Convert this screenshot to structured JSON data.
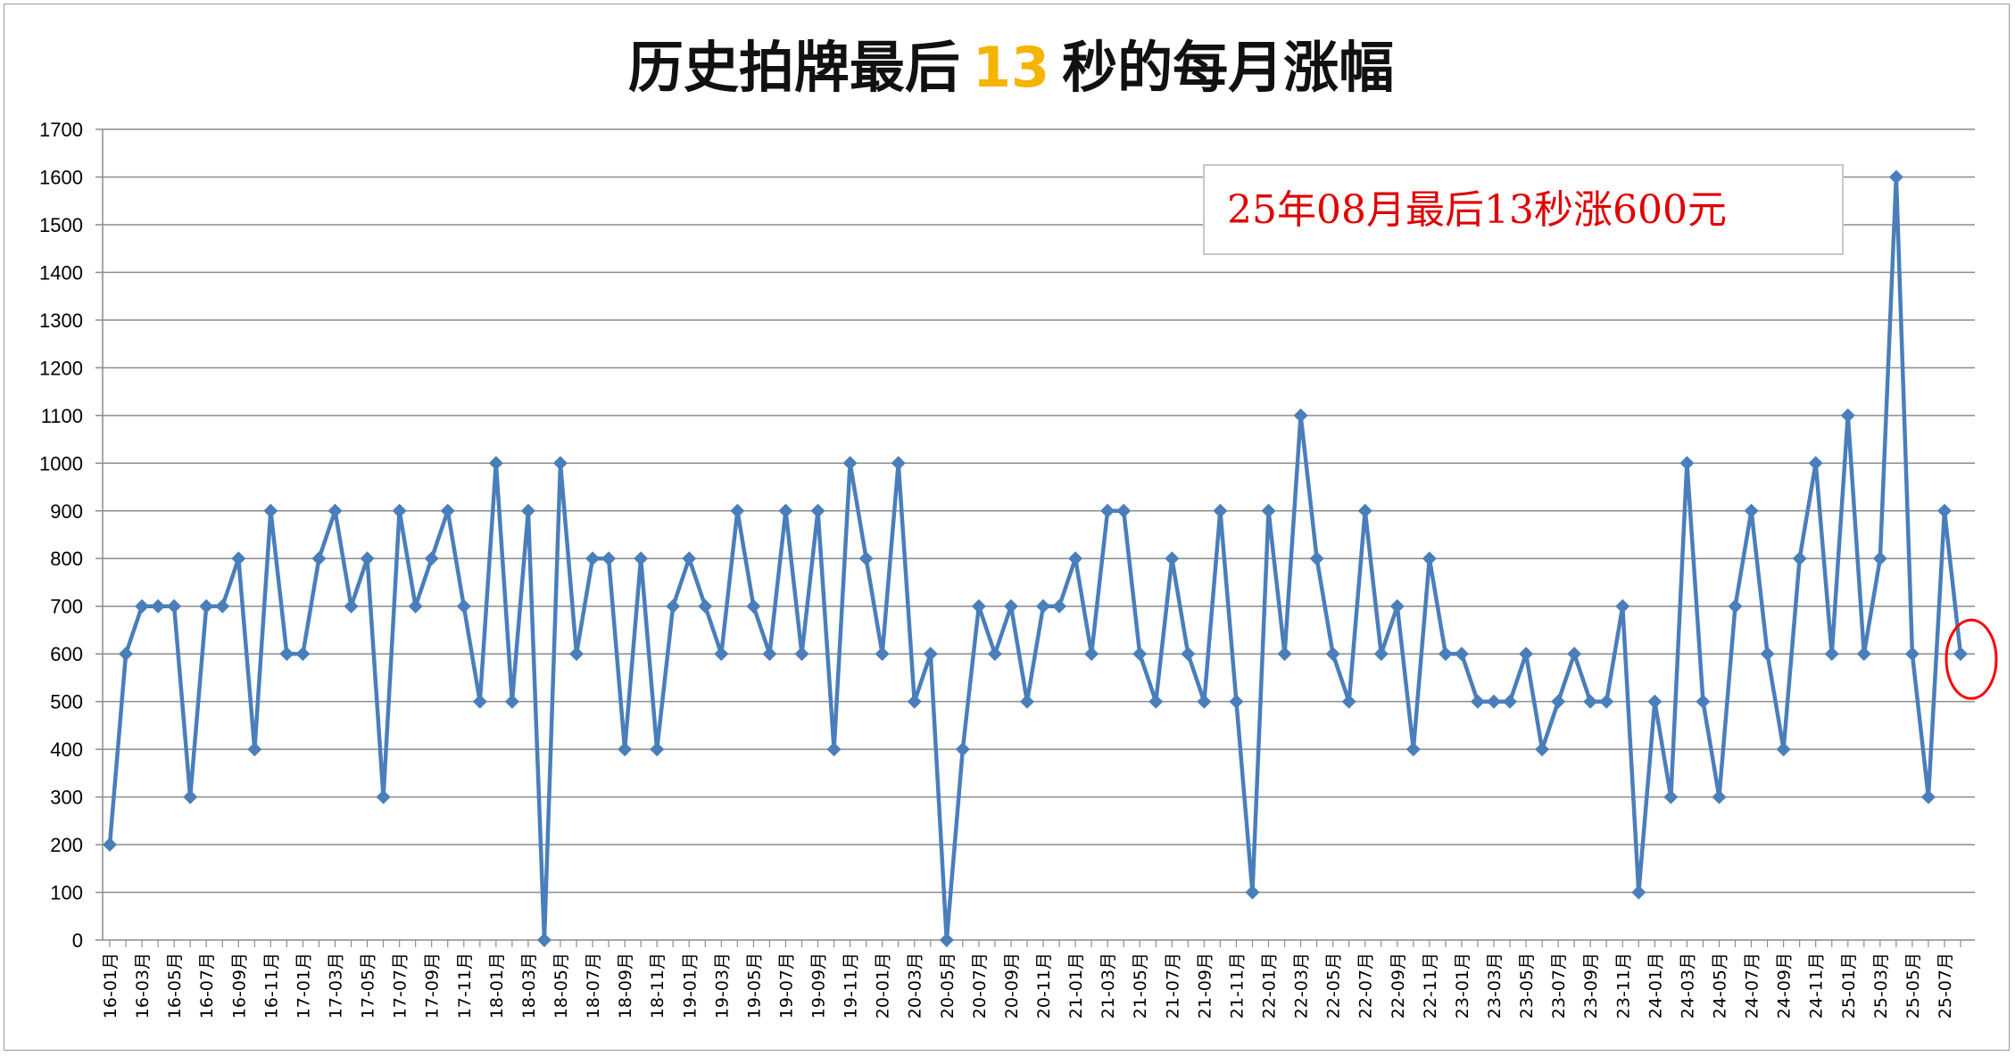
{
  "chart_data": {
    "type": "line",
    "title_prefix": "历史拍牌最后",
    "title_accent": "13",
    "title_suffix": "秒的每月涨幅",
    "xlabel": "",
    "ylabel": "",
    "ylim": [
      0,
      1700
    ],
    "yticks": [
      0,
      100,
      200,
      300,
      400,
      500,
      600,
      700,
      800,
      900,
      1000,
      1100,
      1200,
      1300,
      1400,
      1500,
      1600,
      1700
    ],
    "grid": true,
    "legend": "none",
    "annotation": "25年08月最后13秒涨600元",
    "line_color": "#4a7ebb",
    "marker": "diamond",
    "highlight_color": "#ff0000",
    "highlight_last": true,
    "categories": [
      "16-01月",
      "16-02月",
      "16-03月",
      "16-04月",
      "16-05月",
      "16-06月",
      "16-07月",
      "16-08月",
      "16-09月",
      "16-10月",
      "16-11月",
      "16-12月",
      "17-01月",
      "17-02月",
      "17-03月",
      "17-04月",
      "17-05月",
      "17-06月",
      "17-07月",
      "17-08月",
      "17-09月",
      "17-10月",
      "17-11月",
      "17-12月",
      "18-01月",
      "18-02月",
      "18-03月",
      "18-04月",
      "18-05月",
      "18-06月",
      "18-07月",
      "18-08月",
      "18-09月",
      "18-10月",
      "18-11月",
      "18-12月",
      "19-01月",
      "19-02月",
      "19-03月",
      "19-04月",
      "19-05月",
      "19-06月",
      "19-07月",
      "19-08月",
      "19-09月",
      "19-10月",
      "19-11月",
      "19-12月",
      "20-01月",
      "20-02月",
      "20-03月",
      "20-04月",
      "20-05月",
      "20-06月",
      "20-07月",
      "20-08月",
      "20-09月",
      "20-10月",
      "20-11月",
      "20-12月",
      "21-01月",
      "21-02月",
      "21-03月",
      "21-04月",
      "21-05月",
      "21-06月",
      "21-07月",
      "21-08月",
      "21-09月",
      "21-10月",
      "21-11月",
      "21-12月",
      "22-01月",
      "22-02月",
      "22-03月",
      "22-04月",
      "22-05月",
      "22-06月",
      "22-07月",
      "22-08月",
      "22-09月",
      "22-10月",
      "22-11月",
      "22-12月",
      "23-01月",
      "23-02月",
      "23-03月",
      "23-04月",
      "23-05月",
      "23-06月",
      "23-07月",
      "23-08月",
      "23-09月",
      "23-10月",
      "23-11月",
      "23-12月",
      "24-01月",
      "24-02月",
      "24-03月",
      "24-04月",
      "24-05月",
      "24-06月",
      "24-07月",
      "24-08月",
      "24-09月",
      "24-10月",
      "24-11月",
      "24-12月",
      "25-01月",
      "25-02月",
      "25-03月",
      "25-04月",
      "25-05月",
      "25-06月",
      "25-07月",
      "25-08月"
    ],
    "tick_labels_every": 2,
    "values": [
      200,
      600,
      700,
      700,
      700,
      300,
      700,
      700,
      800,
      400,
      900,
      600,
      600,
      800,
      900,
      700,
      800,
      300,
      900,
      700,
      800,
      900,
      700,
      500,
      1000,
      500,
      900,
      0,
      1000,
      600,
      800,
      800,
      400,
      800,
      400,
      700,
      800,
      700,
      600,
      900,
      700,
      600,
      900,
      600,
      900,
      400,
      1000,
      800,
      600,
      1000,
      500,
      600,
      0,
      400,
      700,
      600,
      700,
      500,
      700,
      700,
      800,
      600,
      900,
      900,
      600,
      500,
      800,
      600,
      500,
      900,
      500,
      100,
      900,
      600,
      1100,
      800,
      600,
      500,
      900,
      600,
      700,
      400,
      800,
      600,
      600,
      500,
      500,
      500,
      600,
      400,
      500,
      600,
      500,
      500,
      700,
      100,
      500,
      300,
      1000,
      500,
      300,
      700,
      900,
      600,
      400,
      800,
      1000,
      600,
      1100,
      600,
      800,
      1600,
      600,
      300,
      900,
      600
    ]
  }
}
